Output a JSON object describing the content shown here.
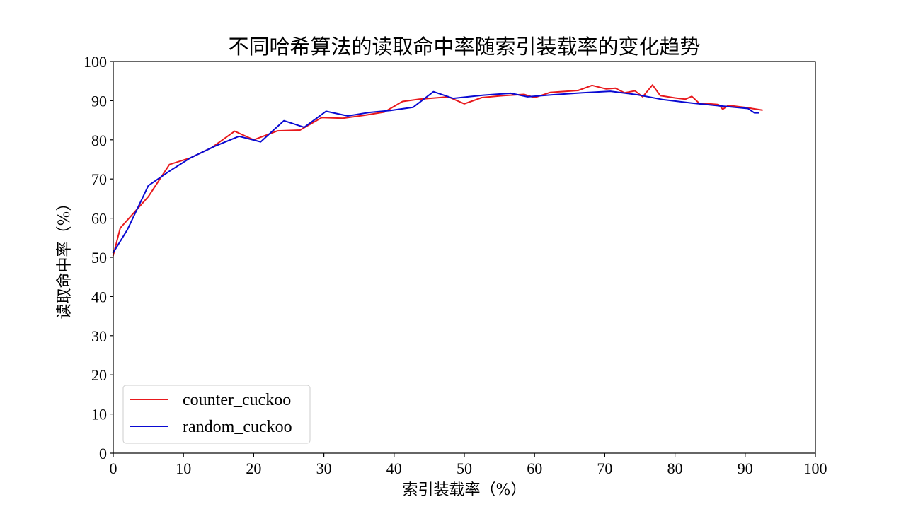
{
  "chart_data": {
    "type": "line",
    "title": "不同哈希算法的读取命中率随索引装载率的变化趋势",
    "xlabel": "索引装载率（%）",
    "ylabel": "读取命中率（%）",
    "xlim": [
      0,
      100
    ],
    "ylim": [
      0,
      100
    ],
    "xticks": [
      0,
      10,
      20,
      30,
      40,
      50,
      60,
      70,
      80,
      90,
      100
    ],
    "yticks": [
      0,
      10,
      20,
      30,
      40,
      50,
      60,
      70,
      80,
      90,
      100
    ],
    "legend_position": "lower-left",
    "grid": false,
    "series": [
      {
        "name": "counter_cuckoo",
        "color": "#e8191d",
        "points": [
          [
            0,
            50.5
          ],
          [
            1,
            57.5
          ],
          [
            3,
            61.5
          ],
          [
            5,
            65.5
          ],
          [
            8,
            73.7
          ],
          [
            11,
            75.4
          ],
          [
            14,
            78.0
          ],
          [
            17.3,
            82.2
          ],
          [
            20,
            80.0
          ],
          [
            23.4,
            82.3
          ],
          [
            26.6,
            82.5
          ],
          [
            29.7,
            85.7
          ],
          [
            32.7,
            85.5
          ],
          [
            35.9,
            86.3
          ],
          [
            38.6,
            87.1
          ],
          [
            41.2,
            89.8
          ],
          [
            43.6,
            90.4
          ],
          [
            46.5,
            90.8
          ],
          [
            47.7,
            91.0
          ],
          [
            50,
            89.2
          ],
          [
            52.5,
            90.8
          ],
          [
            55.5,
            91.3
          ],
          [
            58.5,
            91.6
          ],
          [
            60,
            90.8
          ],
          [
            62.2,
            92.1
          ],
          [
            66.2,
            92.6
          ],
          [
            68.2,
            93.9
          ],
          [
            70.2,
            93.0
          ],
          [
            71.5,
            93.2
          ],
          [
            72.8,
            92.0
          ],
          [
            74.3,
            92.5
          ],
          [
            75.4,
            91.0
          ],
          [
            76.8,
            94.0
          ],
          [
            77.9,
            91.3
          ],
          [
            80,
            90.7
          ],
          [
            81.5,
            90.4
          ],
          [
            82.4,
            91.1
          ],
          [
            83.6,
            89.1
          ],
          [
            84.2,
            89.3
          ],
          [
            86.2,
            89.0
          ],
          [
            86.8,
            87.8
          ],
          [
            87.6,
            88.8
          ],
          [
            89.4,
            88.4
          ],
          [
            90.4,
            88.2
          ],
          [
            91.0,
            88.0
          ],
          [
            92.4,
            87.6
          ]
        ]
      },
      {
        "name": "random_cuckoo",
        "color": "#0a0ad2",
        "points": [
          [
            0,
            51.2
          ],
          [
            2,
            57.0
          ],
          [
            5,
            68.3
          ],
          [
            8,
            72.0
          ],
          [
            11,
            75.4
          ],
          [
            14.5,
            78.4
          ],
          [
            17.9,
            80.9
          ],
          [
            21,
            79.5
          ],
          [
            24.3,
            84.9
          ],
          [
            27.2,
            83.2
          ],
          [
            30.3,
            87.3
          ],
          [
            33.4,
            86.1
          ],
          [
            36.5,
            87.0
          ],
          [
            39.5,
            87.5
          ],
          [
            42.7,
            88.3
          ],
          [
            45.6,
            92.3
          ],
          [
            48.4,
            90.6
          ],
          [
            52.7,
            91.4
          ],
          [
            56.6,
            91.9
          ],
          [
            59,
            91.0
          ],
          [
            62.5,
            91.5
          ],
          [
            66.8,
            92.0
          ],
          [
            70.8,
            92.4
          ],
          [
            74.7,
            91.5
          ],
          [
            78.2,
            90.3
          ],
          [
            82.4,
            89.4
          ],
          [
            86.3,
            88.7
          ],
          [
            90.4,
            88.0
          ],
          [
            91.3,
            86.9
          ],
          [
            91.9,
            86.9
          ]
        ]
      }
    ]
  }
}
